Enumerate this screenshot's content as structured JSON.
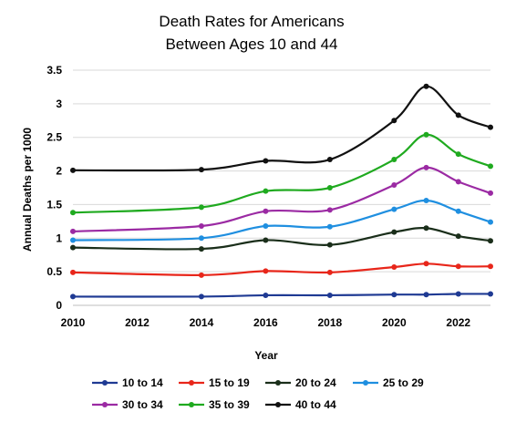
{
  "chart_data": {
    "type": "line",
    "title_lines": [
      "Death Rates for Americans",
      "Between Ages 10 and 44"
    ],
    "xlabel": "Year",
    "ylabel": "Annual Deaths per 1000",
    "xlim": [
      2010,
      2023
    ],
    "ylim": [
      0,
      3.5
    ],
    "x_ticks": [
      "2010",
      "2012",
      "2014",
      "2016",
      "2018",
      "2020",
      "2022"
    ],
    "y_ticks": [
      "0",
      "0.5",
      "1",
      "1.5",
      "2",
      "2.5",
      "3",
      "3.5"
    ],
    "grid": "horizontal",
    "legend_position": "bottom",
    "x": [
      2010,
      2014,
      2016,
      2018,
      2020,
      2021,
      2022,
      2023
    ],
    "series": [
      {
        "name": "10 to 14",
        "color": "#1f3a93",
        "values": [
          0.13,
          0.13,
          0.15,
          0.15,
          0.16,
          0.16,
          0.17,
          0.17
        ]
      },
      {
        "name": "15 to 19",
        "color": "#e8261a",
        "values": [
          0.49,
          0.45,
          0.51,
          0.49,
          0.57,
          0.62,
          0.58,
          0.58
        ]
      },
      {
        "name": "20 to 24",
        "color": "#1a2e1a",
        "values": [
          0.86,
          0.84,
          0.97,
          0.9,
          1.09,
          1.15,
          1.03,
          0.96
        ]
      },
      {
        "name": "25 to 29",
        "color": "#1f8fe0",
        "values": [
          0.97,
          1.0,
          1.18,
          1.17,
          1.43,
          1.56,
          1.4,
          1.24
        ]
      },
      {
        "name": "30 to 34",
        "color": "#9b2aa3",
        "values": [
          1.1,
          1.18,
          1.4,
          1.42,
          1.79,
          2.05,
          1.84,
          1.67
        ]
      },
      {
        "name": "35 to 39",
        "color": "#1faa1f",
        "values": [
          1.38,
          1.46,
          1.7,
          1.75,
          2.17,
          2.54,
          2.25,
          2.07
        ]
      },
      {
        "name": "40 to 44",
        "color": "#111111",
        "values": [
          2.01,
          2.02,
          2.15,
          2.17,
          2.75,
          3.26,
          2.83,
          2.65
        ]
      }
    ]
  }
}
